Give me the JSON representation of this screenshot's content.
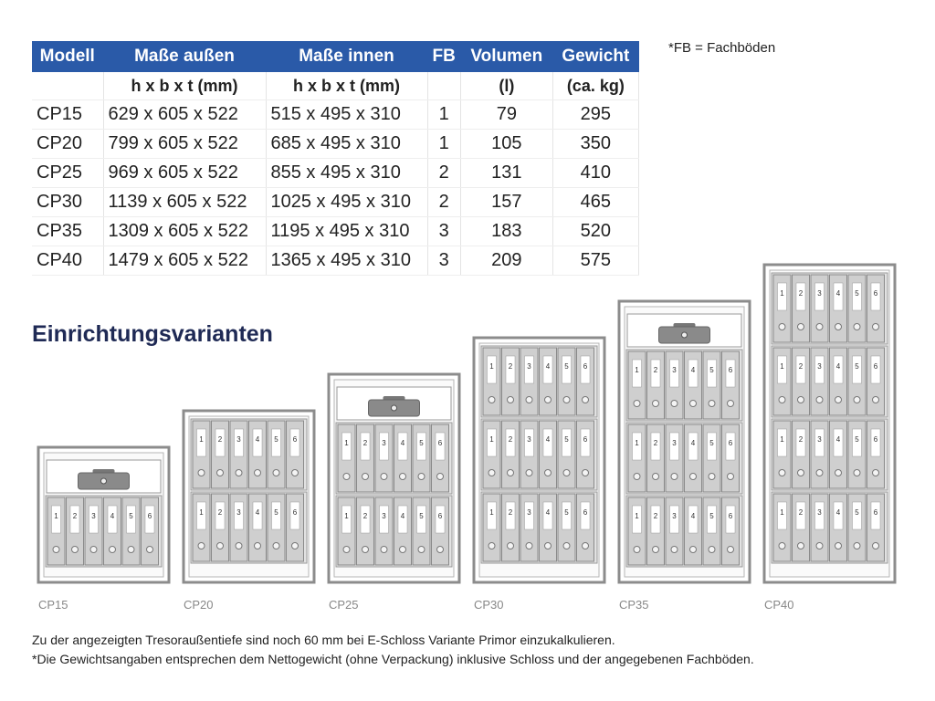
{
  "header_note": "*FB = Fachböden",
  "table": {
    "columns": [
      {
        "title": "Modell"
      },
      {
        "title": "Maße außen",
        "unit": "h x b x t (mm)"
      },
      {
        "title": "Maße innen",
        "unit": "h x b x t (mm)"
      },
      {
        "title": "FB"
      },
      {
        "title": "Volumen",
        "unit": "(l)"
      },
      {
        "title": "Gewicht",
        "unit": "(ca. kg)"
      }
    ],
    "rows": [
      [
        "CP15",
        "629 x 605 x 522",
        "515 x 495 x 310",
        1,
        79,
        295
      ],
      [
        "CP20",
        "799 x 605 x 522",
        "685 x 495 x 310",
        1,
        105,
        350
      ],
      [
        "CP25",
        "969 x 605 x 522",
        "855 x 495 x 310",
        2,
        131,
        410
      ],
      [
        "CP30",
        "1139 x 605 x 522",
        "1025 x 495 x 310",
        2,
        157,
        465
      ],
      [
        "CP35",
        "1309 x 605 x 522",
        "1195 x 495 x 310",
        3,
        183,
        520
      ],
      [
        "CP40",
        "1479 x 605 x 522",
        "1365 x 495 x 310",
        3,
        209,
        575
      ]
    ]
  },
  "diagram": {
    "title": "Einrichtungsvarianten",
    "binder_labels": [
      "1",
      "2",
      "3",
      "4",
      "5",
      "6"
    ],
    "safes": [
      "CP15",
      "CP20",
      "CP25",
      "CP30",
      "CP35",
      "CP40"
    ]
  },
  "footnotes": [
    "Zu der angezeigten Tresoraußentiefe sind noch 60 mm bei E-Schloss Variante Primor einzukalkulieren.",
    "*Die Gewichtsangaben entsprechen dem Nettogewicht (ohne Verpackung) inklusive Schloss und der angegebenen Fachböden."
  ]
}
